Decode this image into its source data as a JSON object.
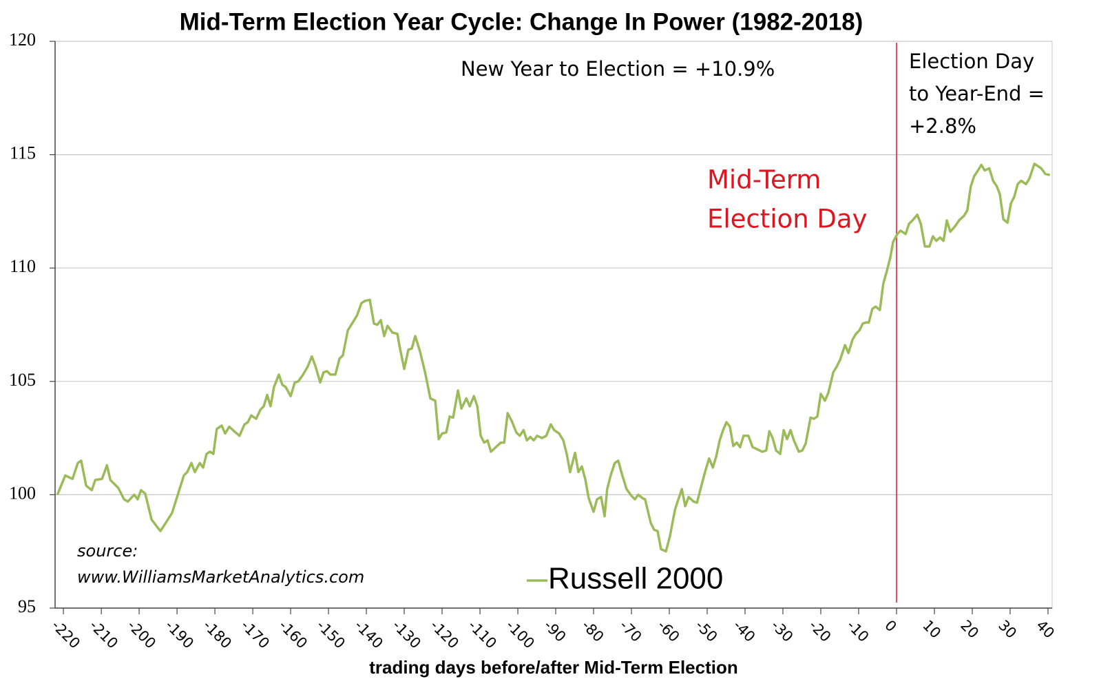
{
  "chart_data": {
    "type": "line",
    "title": "Mid-Term Election Year Cycle: Change In Power (1982-2018)",
    "x_label": "trading days before/after Mid-Term Election",
    "xlim": [
      -222.2,
      41.1
    ],
    "xticks": [
      -220,
      -210,
      -200,
      -190,
      -180,
      -170,
      -160,
      -150,
      -140,
      -130,
      -120,
      -110,
      -100,
      -90,
      -80,
      -70,
      -60,
      -50,
      -40,
      -30,
      -20,
      -10,
      0,
      10,
      20,
      30,
      40
    ],
    "ylim": [
      95,
      120
    ],
    "yticks": [
      95,
      100,
      105,
      110,
      115,
      120
    ],
    "grid": true,
    "vline": {
      "x": 0,
      "color": "#e0141e"
    },
    "annotations": {
      "new_year_to_election": "New Year to Election = +10.9%",
      "election_day_to_year_end": [
        "Election Day",
        "to Year-End =",
        "+2.8%"
      ],
      "mid_term_election_day": [
        "Mid-Term",
        "Election Day"
      ],
      "source": [
        "source:",
        "www.WilliamsMarketAnalytics.com"
      ]
    },
    "legend": "bottom",
    "x": [
      -221.6,
      -219.5,
      -217.6,
      -216.2,
      -215.3,
      -214,
      -212.5,
      -211.6,
      -209.8,
      -208.5,
      -207.6,
      -205.5,
      -204,
      -203,
      -201.3,
      -200.4,
      -199.5,
      -198.4,
      -196.7,
      -194.4,
      -193,
      -191.3,
      -189.8,
      -188.2,
      -187.3,
      -186.2,
      -185.3,
      -184,
      -183.1,
      -182.2,
      -181.3,
      -180.4,
      -179.5,
      -178.2,
      -177.3,
      -176.2,
      -174.9,
      -173.5,
      -172.2,
      -171.3,
      -170.4,
      -169.1,
      -168,
      -167.1,
      -166.2,
      -165.3,
      -164.4,
      -163.1,
      -162.2,
      -161.3,
      -160,
      -158.9,
      -158,
      -156.7,
      -155.5,
      -154.4,
      -153.5,
      -152.2,
      -151.3,
      -150.4,
      -149.5,
      -148.2,
      -147.1,
      -146.2,
      -144.9,
      -143.6,
      -142.5,
      -141.3,
      -140.4,
      -139.1,
      -138,
      -137.1,
      -136.2,
      -135.3,
      -134.4,
      -133.1,
      -131.8,
      -131.3,
      -130,
      -128.9,
      -128,
      -127.1,
      -125.8,
      -124.5,
      -123.1,
      -121.8,
      -120.9,
      -120,
      -118.9,
      -118,
      -117.1,
      -115.8,
      -114.9,
      -113.6,
      -112.7,
      -111.6,
      -110.7,
      -109.8,
      -108.9,
      -108,
      -107.1,
      -105.8,
      -104.5,
      -103.6,
      -102.7,
      -101.6,
      -100.4,
      -99.5,
      -98.5,
      -97.6,
      -96.7,
      -95.8,
      -94.9,
      -93.6,
      -92.5,
      -91.3,
      -90.4,
      -89.1,
      -88,
      -87.1,
      -86.2,
      -84.9,
      -84,
      -83.1,
      -82.2,
      -81.3,
      -80,
      -79.1,
      -78,
      -77.1,
      -76.4,
      -75.5,
      -74.4,
      -73.5,
      -72.5,
      -71.3,
      -70,
      -69.1,
      -68.2,
      -67.1,
      -66.4,
      -64.9,
      -64,
      -63.1,
      -62.2,
      -60.9,
      -59.8,
      -58.5,
      -57.6,
      -56.7,
      -55.8,
      -54.9,
      -53.6,
      -52.7,
      -51.3,
      -50.4,
      -49.5,
      -48.5,
      -47.6,
      -46.7,
      -45.8,
      -44.9,
      -44,
      -43.1,
      -42.2,
      -41.3,
      -40.4,
      -39.1,
      -38,
      -36.7,
      -35.5,
      -34.4,
      -33.6,
      -32.7,
      -31.8,
      -30.7,
      -29.8,
      -28.9,
      -28,
      -27.1,
      -25.8,
      -24.9,
      -24,
      -22.7,
      -21.8,
      -20.9,
      -20,
      -18.9,
      -18,
      -16.7,
      -15.8,
      -14.9,
      -13.6,
      -12.7,
      -11.6,
      -10.7,
      -9.8,
      -8.9,
      -8,
      -7.3,
      -6.4,
      -5.5,
      -4.4,
      -3.5,
      -2.5,
      -1.6,
      -0.9,
      0.2,
      1.1,
      2.4,
      3.3,
      4.2,
      5.5,
      6.4,
      7.5,
      8.7,
      9.6,
      10.5,
      11.5,
      12.4,
      13.3,
      14.2,
      15.5,
      16.5,
      17.8,
      18.7,
      19.6,
      20.5,
      21.5,
      22.4,
      23.3,
      24.5,
      25.5,
      26.5,
      27.3,
      28.2,
      29.3,
      30.2,
      31.1,
      32,
      32.9,
      34.2,
      35.1,
      36.4,
      37.3,
      38.2,
      39.3,
      40.5
    ],
    "series": [
      {
        "name": "Russell 2000",
        "color": "#9bbb59",
        "values": [
          100.0,
          100.85,
          100.7,
          101.4,
          101.5,
          100.4,
          100.2,
          100.65,
          100.7,
          101.3,
          100.65,
          100.3,
          99.8,
          99.7,
          100.0,
          99.8,
          100.2,
          100.05,
          98.9,
          98.4,
          98.75,
          99.2,
          100.0,
          100.85,
          101.0,
          101.4,
          101.0,
          101.4,
          101.2,
          101.8,
          101.9,
          101.8,
          102.9,
          103.05,
          102.7,
          103.0,
          102.8,
          102.6,
          103.1,
          103.2,
          103.5,
          103.35,
          103.75,
          103.9,
          104.4,
          103.9,
          104.75,
          105.3,
          104.85,
          104.75,
          104.35,
          104.95,
          105.0,
          105.3,
          105.65,
          106.1,
          105.7,
          104.95,
          105.4,
          105.45,
          105.3,
          105.3,
          106.0,
          106.15,
          107.25,
          107.6,
          107.9,
          108.45,
          108.55,
          108.6,
          107.55,
          107.5,
          107.7,
          107.0,
          107.45,
          107.15,
          107.1,
          106.6,
          105.55,
          106.4,
          106.45,
          107.0,
          106.3,
          105.4,
          104.25,
          104.15,
          102.45,
          102.7,
          102.75,
          103.45,
          103.4,
          104.6,
          103.8,
          104.25,
          103.9,
          104.35,
          103.9,
          102.6,
          102.3,
          102.4,
          101.9,
          102.1,
          102.3,
          102.3,
          103.6,
          103.25,
          102.75,
          102.6,
          102.85,
          102.4,
          102.55,
          102.4,
          102.6,
          102.5,
          102.6,
          103.1,
          102.85,
          102.7,
          102.4,
          101.8,
          101.0,
          101.85,
          101.0,
          101.25,
          100.7,
          99.85,
          99.25,
          99.8,
          99.9,
          99.05,
          100.25,
          100.85,
          101.4,
          101.5,
          100.9,
          100.25,
          99.95,
          99.8,
          100.0,
          99.85,
          99.8,
          98.75,
          98.45,
          98.4,
          97.6,
          97.5,
          98.2,
          99.35,
          99.8,
          100.25,
          99.5,
          99.9,
          99.7,
          99.65,
          100.55,
          101.1,
          101.6,
          101.2,
          101.7,
          102.4,
          102.85,
          103.2,
          103.0,
          102.15,
          102.3,
          102.1,
          102.6,
          102.6,
          102.1,
          102.0,
          101.9,
          101.95,
          102.8,
          102.5,
          101.95,
          101.8,
          102.85,
          102.45,
          102.85,
          102.4,
          101.9,
          101.95,
          102.25,
          103.4,
          103.35,
          103.45,
          104.45,
          104.15,
          104.5,
          105.4,
          105.65,
          105.95,
          106.6,
          106.25,
          106.85,
          107.1,
          107.25,
          107.55,
          107.6,
          107.6,
          108.2,
          108.3,
          108.15,
          109.3,
          109.9,
          110.5,
          111.15,
          111.5,
          111.65,
          111.5,
          111.95,
          112.1,
          112.35,
          111.95,
          110.95,
          110.95,
          111.4,
          111.2,
          111.35,
          111.2,
          112.1,
          111.6,
          111.85,
          112.1,
          112.3,
          112.55,
          113.6,
          114.05,
          114.3,
          114.55,
          114.3,
          114.4,
          113.85,
          113.6,
          113.25,
          112.15,
          112.0,
          112.85,
          113.15,
          113.7,
          113.85,
          113.7,
          113.95,
          114.6,
          114.5,
          114.4,
          114.15,
          114.1
        ]
      }
    ]
  }
}
